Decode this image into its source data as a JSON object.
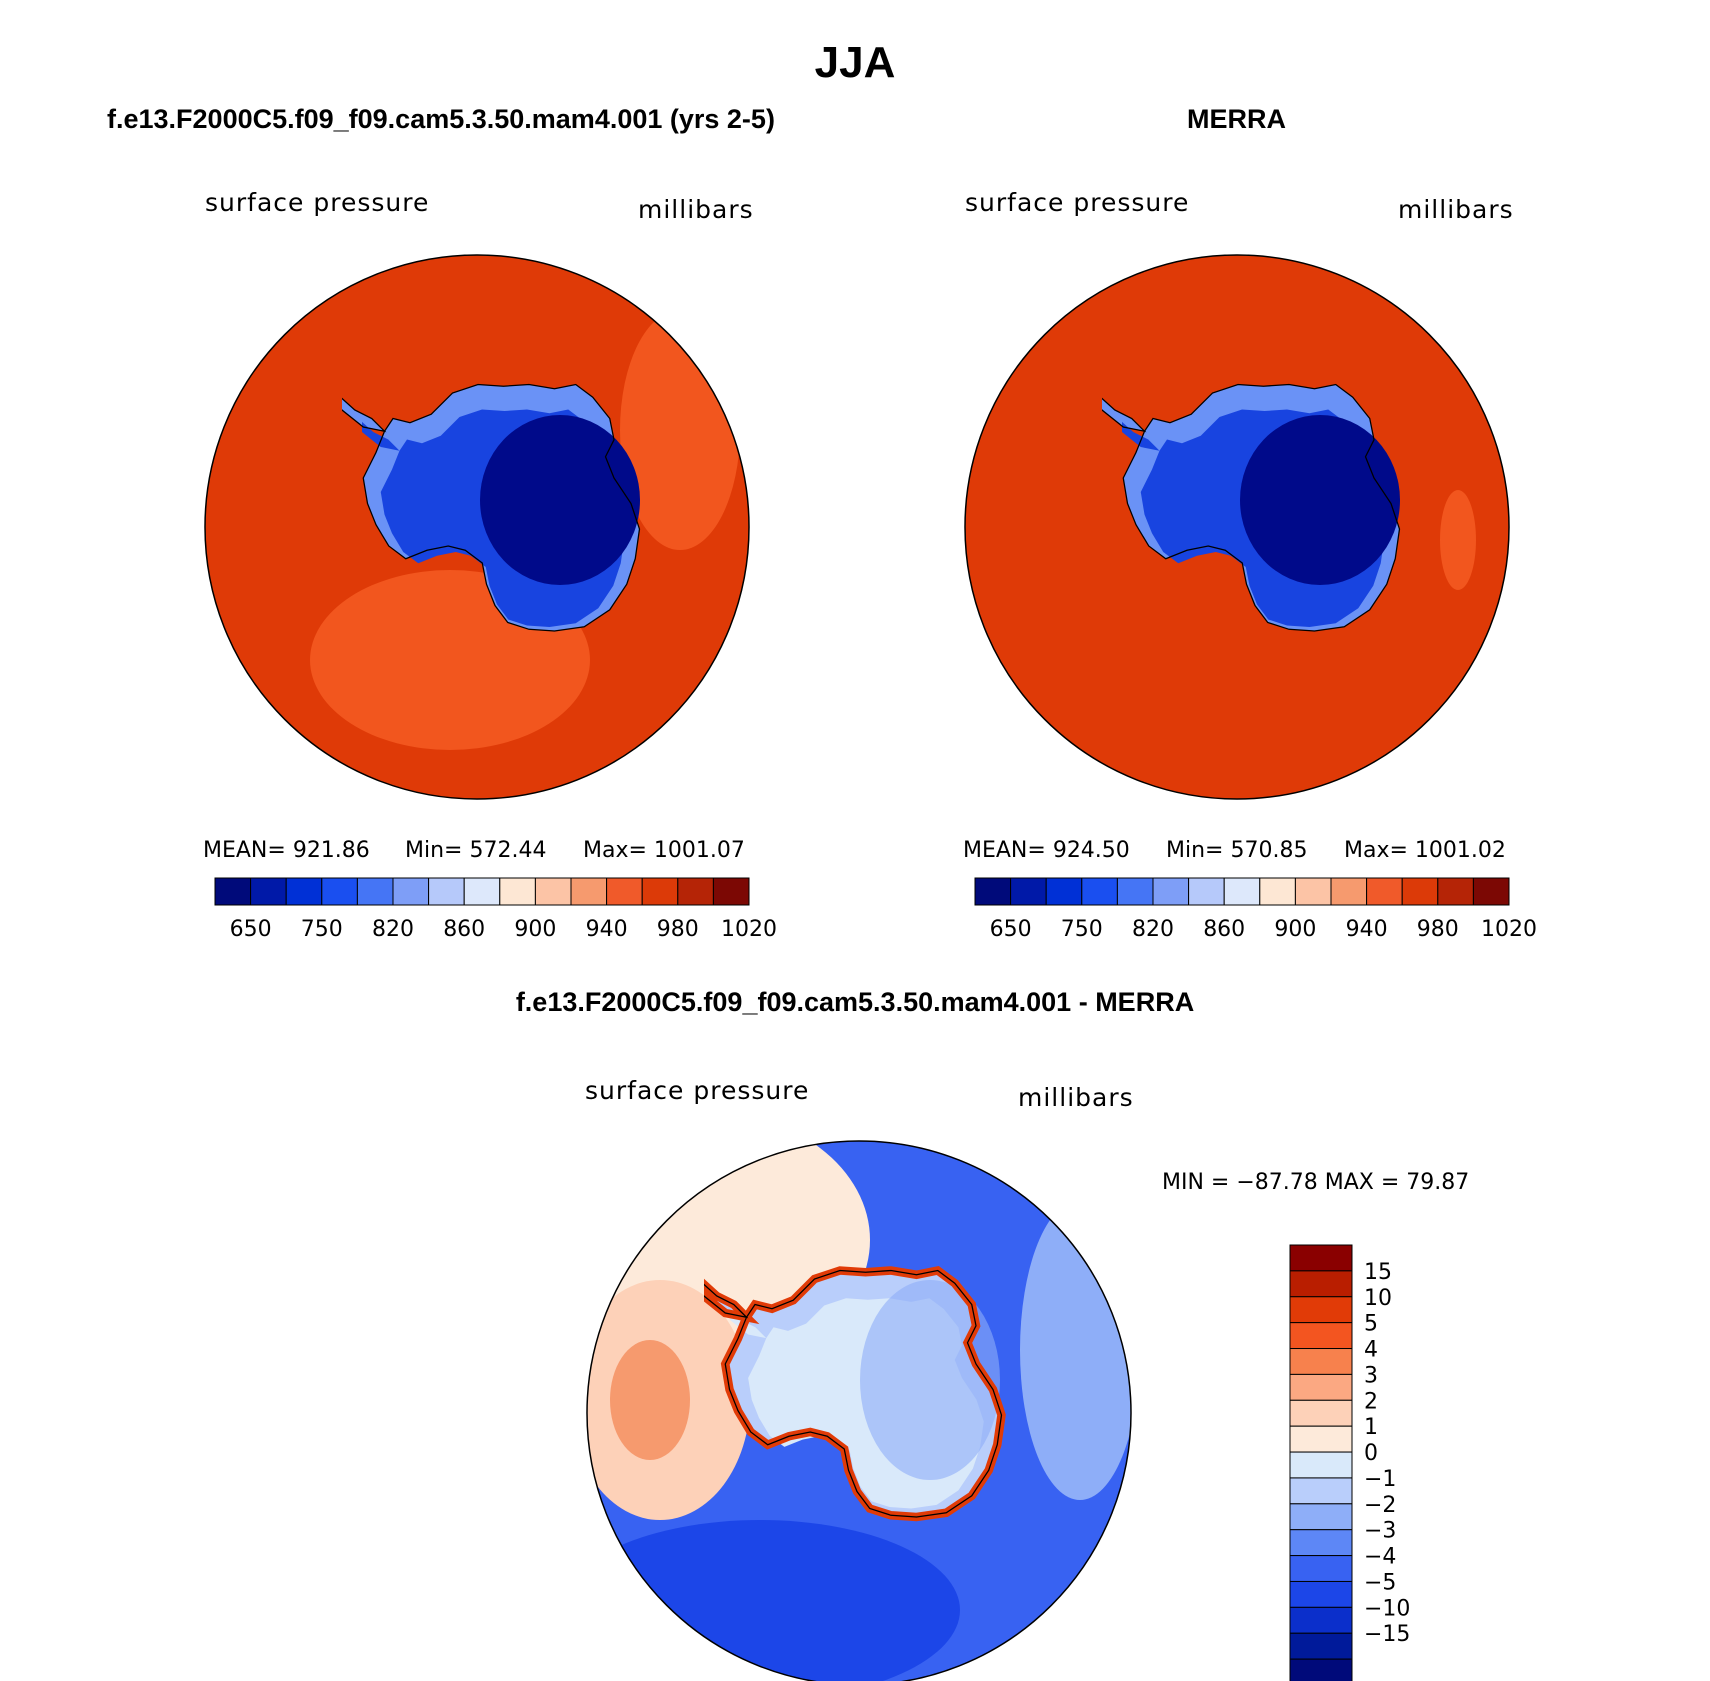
{
  "title": "JJA",
  "panels": [
    {
      "title": "f.e13.F2000C5.f09_f09.cam5.3.50.mam4.001 (yrs 2-5)",
      "variable": "surface pressure",
      "units": "millibars",
      "stats": {
        "mean": "MEAN= 921.86",
        "min": "Min= 572.44",
        "max": "Max= 1001.07"
      }
    },
    {
      "title": "MERRA",
      "variable": "surface pressure",
      "units": "millibars",
      "stats": {
        "mean": "MEAN= 924.50",
        "min": "Min= 570.85",
        "max": "Max= 1001.02"
      }
    }
  ],
  "difference": {
    "title": "f.e13.F2000C5.f09_f09.cam5.3.50.mam4.001 - MERRA",
    "variable": "surface pressure",
    "units": "millibars",
    "minmax": "MIN = −87.78 MAX =   79.87"
  },
  "colorbar_abs": {
    "colors": [
      "#000a7a",
      "#0019a8",
      "#0030d6",
      "#1a4ff0",
      "#4575f5",
      "#7e9ef7",
      "#b6c9fa",
      "#dde8fb",
      "#fde7d4",
      "#fcc4a6",
      "#f69a6e",
      "#f05a2a",
      "#dc3a08",
      "#b52406",
      "#7c0804"
    ],
    "tick_labels": [
      "650",
      "750",
      "820",
      "860",
      "900",
      "940",
      "980",
      "1020"
    ]
  },
  "colorbar_diff": {
    "colors": [
      "#8a0000",
      "#b91e00",
      "#e13b07",
      "#f35520",
      "#f7814d",
      "#fba882",
      "#fdd1b8",
      "#fdeada",
      "#d9e9fa",
      "#b9cefb",
      "#8eaef8",
      "#5d87f6",
      "#3862f2",
      "#1c46e8",
      "#0b2fcb",
      "#001a9a",
      "#000a7a"
    ],
    "tick_labels": [
      "15",
      "10",
      "5",
      "4",
      "3",
      "2",
      "1",
      "0",
      "−1",
      "−2",
      "−3",
      "−4",
      "−5",
      "−10",
      "−15"
    ]
  },
  "map_colors": {
    "ocean_abs": "#df3a07",
    "ocean_abs_light": "#f2561e",
    "ice_dark": "#000a8a",
    "ice_mid": "#1844e0",
    "ice_light": "#6a92f6",
    "coast": "#000000"
  }
}
